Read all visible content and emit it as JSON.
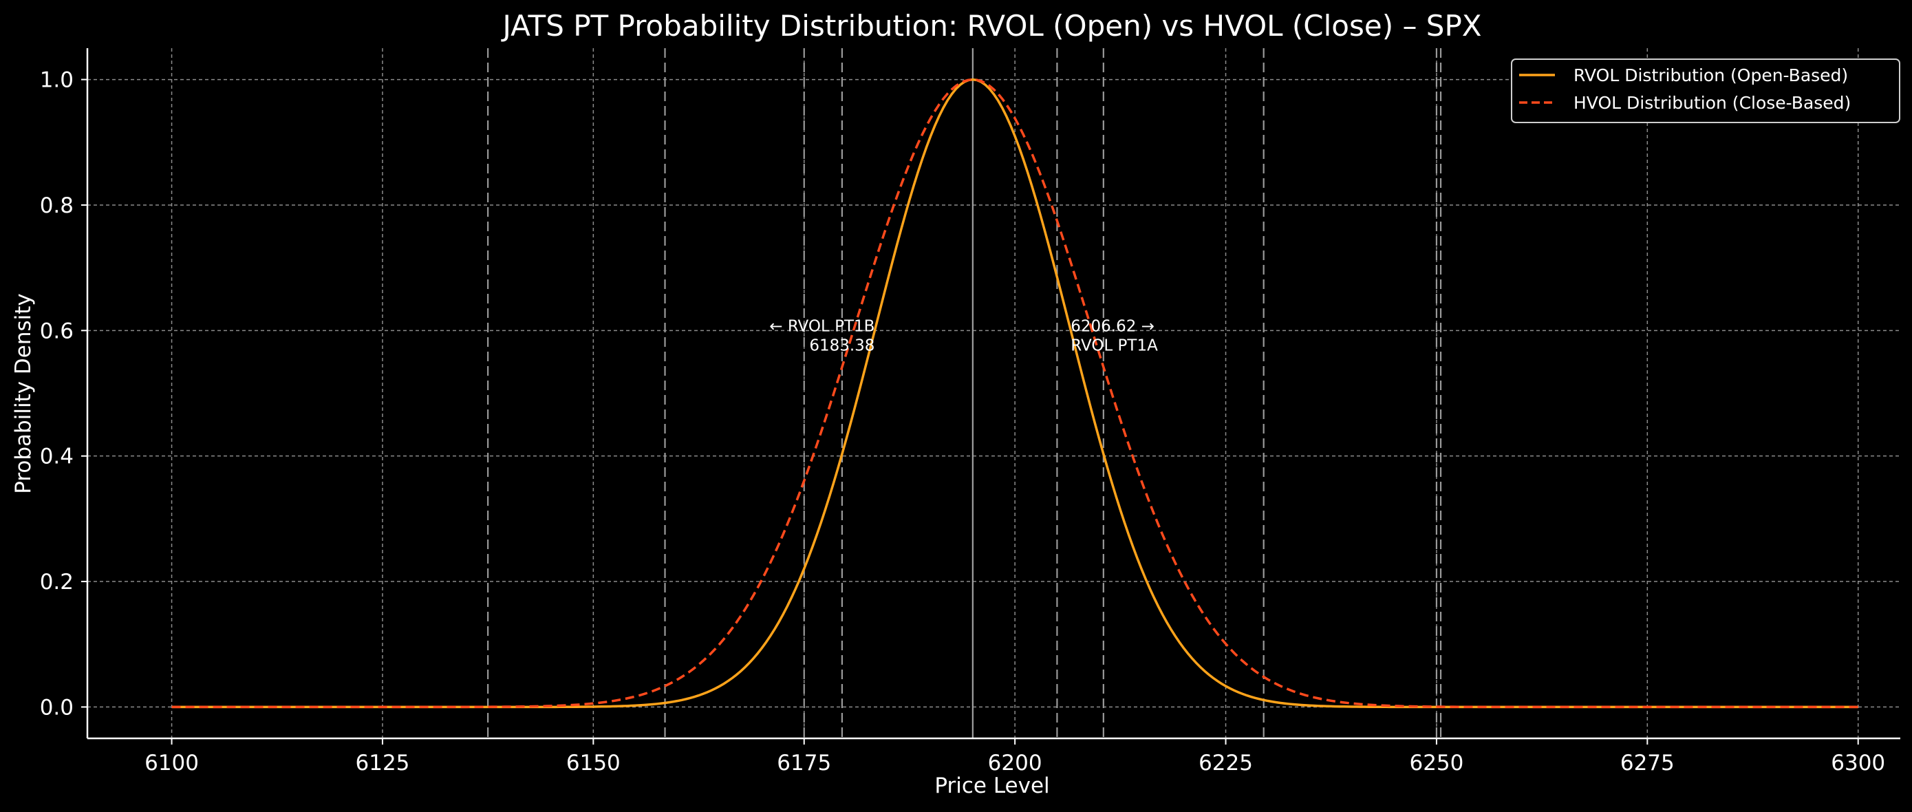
{
  "chart_data": {
    "type": "line",
    "title": "JATS PT Probability Distribution: RVOL (Open) vs HVOL (Close) – SPX",
    "xlabel": "Price Level",
    "ylabel": "Probability Density",
    "xlim": [
      6090,
      6305
    ],
    "ylim": [
      -0.05,
      1.05
    ],
    "x_ticks": [
      6100,
      6125,
      6150,
      6175,
      6200,
      6225,
      6250,
      6275,
      6300
    ],
    "x_tick_labels": [
      "6100",
      "6125",
      "6150",
      "6175",
      "6200",
      "6225",
      "6250",
      "6275",
      "6300"
    ],
    "y_ticks": [
      0.0,
      0.2,
      0.4,
      0.6,
      0.8,
      1.0
    ],
    "y_tick_labels": [
      "0.0",
      "0.2",
      "0.4",
      "0.6",
      "0.8",
      "1.0"
    ],
    "grid": true,
    "legend_position": "top-right",
    "x_range": [
      6100,
      6300
    ],
    "series": [
      {
        "name": "RVOL Distribution (Open-Based)",
        "style": "solid",
        "color": "#ffa31a",
        "peak_x": 6195,
        "peak_y": 1.0,
        "sigma": 11.5
      },
      {
        "name": "HVOL Distribution (Close-Based)",
        "style": "dashed",
        "color": "#ff4a1c",
        "peak_x": 6195,
        "peak_y": 1.0,
        "sigma": 14.0
      }
    ],
    "center_line_x": 6195,
    "vertical_markers": [
      6137.5,
      6158.5,
      6175,
      6179.5,
      6205,
      6210.5,
      6229.5,
      6250,
      6250.5
    ],
    "annotations": [
      {
        "line1": "← RVOL PT1B",
        "line2": "6183.38",
        "x": 6183.38,
        "y": 0.6,
        "align": "right"
      },
      {
        "line1": "6206.62 →",
        "line2": "RVOL PT1A",
        "x": 6206.62,
        "y": 0.6,
        "align": "left"
      }
    ]
  },
  "colors": {
    "background": "#000000",
    "foreground": "#ffffff",
    "grid": "#b0b0b0",
    "marker": "#9a9a9a",
    "center_line": "#a0a0a0"
  }
}
